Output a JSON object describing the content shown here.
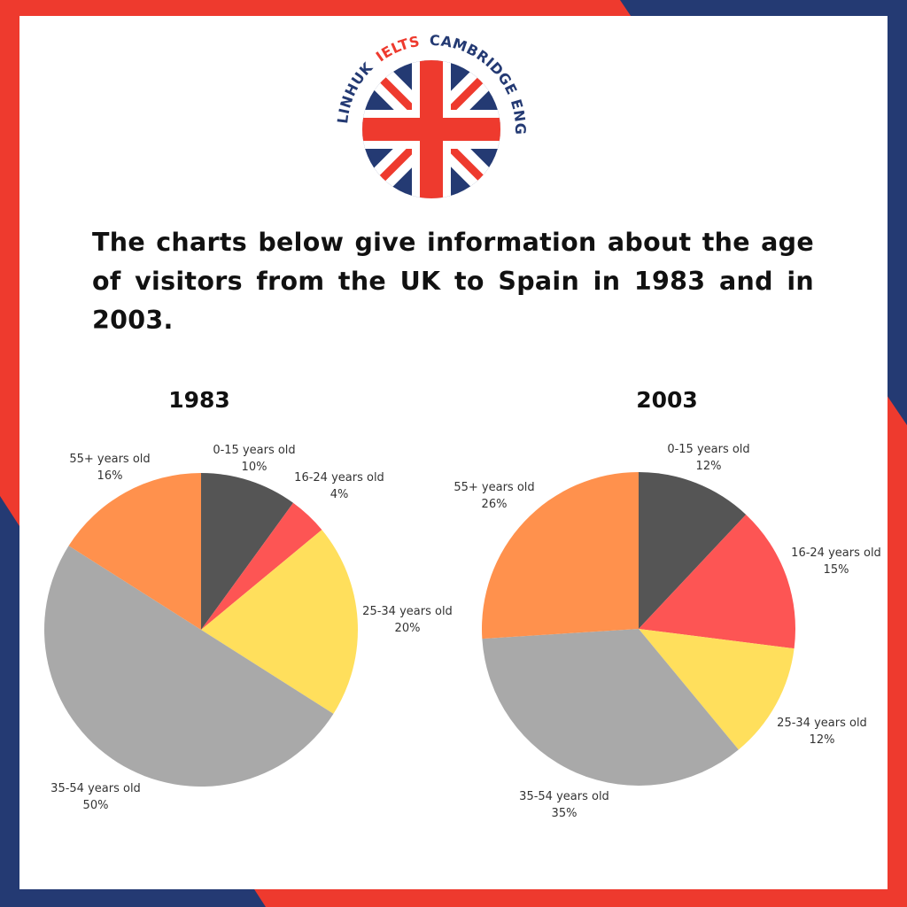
{
  "brand": {
    "logo_text_1": "LINHUK",
    "logo_text_2": "IELTS",
    "logo_text_3": "CAMBRIDGE ENGLISH",
    "colors": {
      "red": "#ee3a2e",
      "navy": "#243a73"
    }
  },
  "heading": "The charts below give information about the age of visitors from the UK to Spain in 1983 and in 2003.",
  "chart_data": [
    {
      "type": "pie",
      "title": "1983",
      "categories": [
        "0-15 years old",
        "16-24 years old",
        "25-34 years old",
        "35-54 years old",
        "55+ years old"
      ],
      "values": [
        10,
        4,
        20,
        50,
        16
      ],
      "value_labels": [
        "10%",
        "4%",
        "20%",
        "50%",
        "16%"
      ],
      "colors": [
        "#555555",
        "#fd5554",
        "#ffdf5c",
        "#a9a9a9",
        "#ff914d"
      ]
    },
    {
      "type": "pie",
      "title": "2003",
      "categories": [
        "0-15 years old",
        "16-24 years old",
        "25-34 years old",
        "35-54 years old",
        "55+ years old"
      ],
      "values": [
        12,
        15,
        12,
        35,
        26
      ],
      "value_labels": [
        "12%",
        "15%",
        "12%",
        "35%",
        "26%"
      ],
      "colors": [
        "#555555",
        "#fd5554",
        "#ffdf5c",
        "#a9a9a9",
        "#ff914d"
      ]
    }
  ]
}
